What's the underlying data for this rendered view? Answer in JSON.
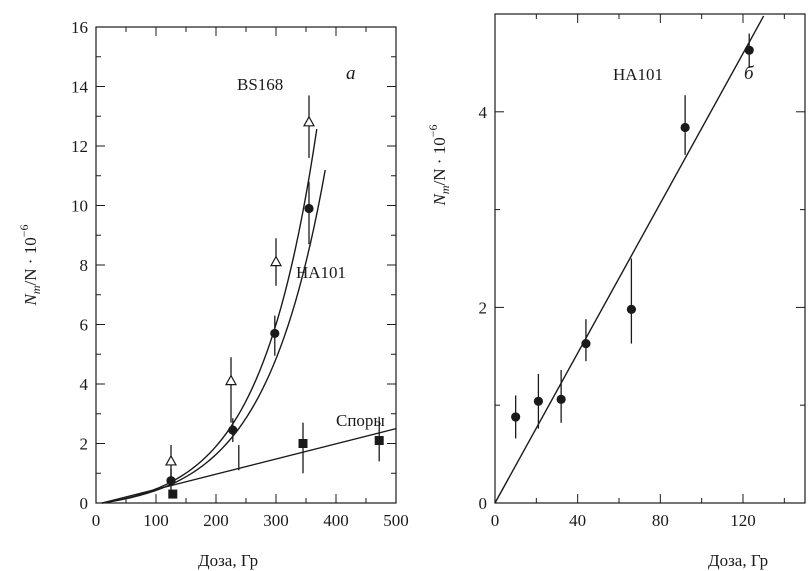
{
  "chart_data": [
    {
      "type": "scatter",
      "panel": "а",
      "xlabel": "Доза, Гр",
      "ylabel": "N_m/N · 10^-6",
      "ylabel_parts": {
        "n": "N",
        "m": "m",
        "rest": "/N · 10",
        "exp": "−6"
      },
      "xlim": [
        0,
        500
      ],
      "ylim": [
        0,
        16
      ],
      "xticks": [
        0,
        100,
        200,
        300,
        400,
        500
      ],
      "yticks": [
        0,
        2,
        4,
        6,
        8,
        10,
        12,
        14,
        16
      ],
      "grid": false,
      "series": [
        {
          "name": "BS168",
          "marker": "open-triangle",
          "x": [
            125,
            225,
            300,
            355
          ],
          "y": [
            1.4,
            4.1,
            8.1,
            12.8
          ],
          "err_low": [
            0.55,
            1.4,
            0.8,
            1.2
          ],
          "err_high": [
            0.55,
            0.8,
            0.8,
            0.9
          ],
          "curve": {
            "x0": 10,
            "x1": 368,
            "a": 0.3,
            "b": 0.0105
          }
        },
        {
          "name": "HA101",
          "marker": "filled-circle",
          "x": [
            125,
            228,
            298,
            355
          ],
          "y": [
            0.75,
            2.45,
            5.7,
            9.9
          ],
          "err_low": [
            0.4,
            0.4,
            0.75,
            1.2
          ],
          "err_high": [
            0.4,
            0.4,
            0.6,
            0.9
          ],
          "curve": {
            "x0": 10,
            "x1": 382,
            "a": 0.3,
            "b": 0.0098
          }
        },
        {
          "name": "Споры",
          "marker": "filled-square",
          "x": [
            128,
            345,
            472
          ],
          "y": [
            0.3,
            2.0,
            2.1
          ],
          "err_low": [
            0,
            1.0,
            0.7
          ],
          "err_high": [
            0,
            0.7,
            0.8
          ],
          "fit": {
            "x0": 10,
            "y0": 0,
            "x1": 500,
            "y1": 2.5
          }
        }
      ],
      "extra_errorbars": [
        {
          "x": 238,
          "y_low": 1.1,
          "y_high": 1.95
        }
      ]
    },
    {
      "type": "scatter",
      "panel": "б",
      "xlabel": "Доза, Гр",
      "ylabel": "N_m/N · 10^-6",
      "ylabel_parts": {
        "n": "N",
        "m": "m",
        "rest": "/N · 10",
        "exp": "−6"
      },
      "xlim": [
        0,
        150
      ],
      "ylim": [
        0,
        5
      ],
      "xticks": [
        0,
        40,
        80,
        120
      ],
      "yticks": [
        0,
        2,
        4
      ],
      "grid": false,
      "series": [
        {
          "name": "HA101",
          "marker": "filled-circle",
          "x": [
            10,
            21,
            32,
            44,
            66,
            92,
            123
          ],
          "y": [
            0.88,
            1.04,
            1.06,
            1.63,
            1.98,
            3.84,
            4.63
          ],
          "err_low": [
            0.22,
            0.28,
            0.24,
            0.18,
            0.35,
            0.28,
            0.18
          ],
          "err_high": [
            0.22,
            0.28,
            0.3,
            0.25,
            0.52,
            0.33,
            0.17
          ],
          "fit": {
            "x0": 0,
            "y0": 0,
            "x1": 130,
            "y1": 4.98
          }
        }
      ]
    }
  ]
}
